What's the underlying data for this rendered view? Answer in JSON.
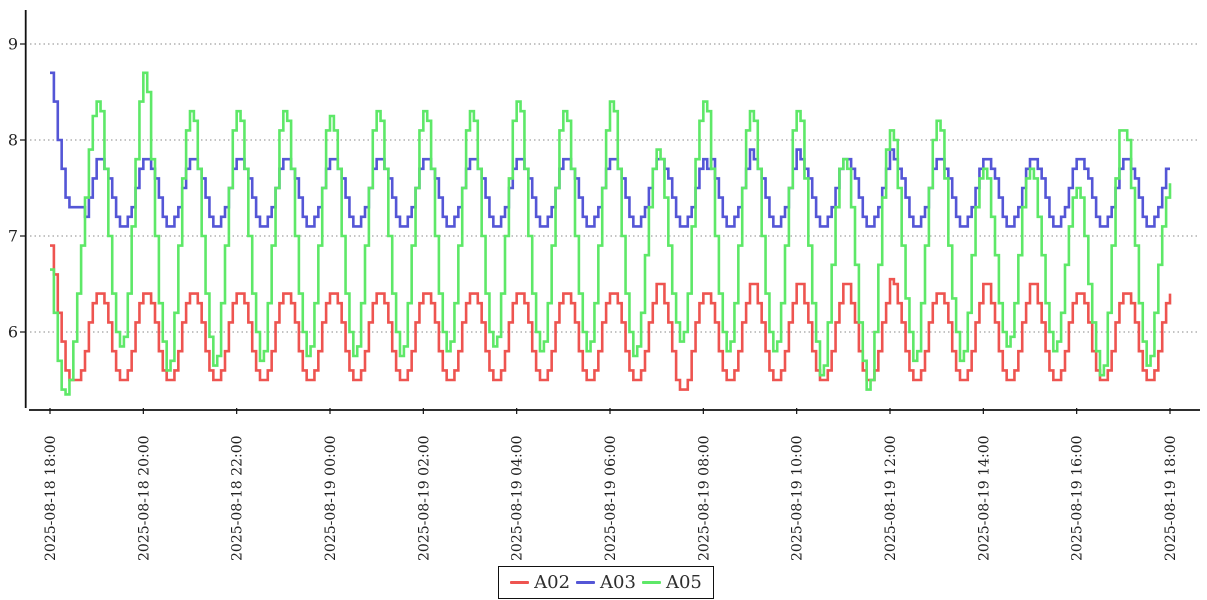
{
  "chart_data": {
    "type": "line",
    "line_style": "step-after",
    "title": "",
    "xlabel": "",
    "ylabel": "",
    "x_start_label": "2025-08-18 18:00",
    "x_end_label": "2025-08-19 18:00",
    "sample_interval_minutes": 5,
    "grid": "horizontal dotted",
    "legend_position": "bottom-center",
    "axis_color": "#111111",
    "grid_color": "#8a8a8a",
    "text_color": "#222222",
    "ylim": [
      5.2,
      9.35
    ],
    "y_ticks": [
      9,
      8,
      7,
      6
    ],
    "x_tick_labels": [
      "2025-08-18 18:00",
      "2025-08-18 20:00",
      "2025-08-18 22:00",
      "2025-08-19 00:00",
      "2025-08-19 02:00",
      "2025-08-19 04:00",
      "2025-08-19 06:00",
      "2025-08-19 08:00",
      "2025-08-19 10:00",
      "2025-08-19 12:00",
      "2025-08-19 14:00",
      "2025-08-19 16:00",
      "2025-08-19 18:00"
    ],
    "series": [
      {
        "name": "A02",
        "color": "#ee5450",
        "values": [
          6.9,
          6.6,
          6.2,
          5.9,
          5.6,
          5.5,
          5.5,
          5.5,
          5.6,
          5.8,
          6.1,
          6.3,
          6.4,
          6.4,
          6.3,
          6.1,
          5.8,
          5.6,
          5.5,
          5.5,
          5.6,
          5.8,
          6.1,
          6.3,
          6.4,
          6.4,
          6.3,
          6.1,
          5.8,
          5.6,
          5.5,
          5.5,
          5.6,
          5.8,
          6.1,
          6.3,
          6.4,
          6.4,
          6.3,
          6.1,
          5.8,
          5.6,
          5.5,
          5.5,
          5.6,
          5.8,
          6.1,
          6.3,
          6.4,
          6.4,
          6.3,
          6.1,
          5.8,
          5.6,
          5.5,
          5.5,
          5.6,
          5.8,
          6.1,
          6.3,
          6.4,
          6.4,
          6.3,
          6.1,
          5.8,
          5.6,
          5.5,
          5.5,
          5.6,
          5.8,
          6.1,
          6.3,
          6.4,
          6.4,
          6.3,
          6.1,
          5.8,
          5.6,
          5.5,
          5.5,
          5.6,
          5.8,
          6.1,
          6.3,
          6.4,
          6.4,
          6.3,
          6.1,
          5.8,
          5.6,
          5.5,
          5.5,
          5.6,
          5.8,
          6.1,
          6.3,
          6.4,
          6.4,
          6.3,
          6.1,
          5.8,
          5.6,
          5.5,
          5.5,
          5.6,
          5.8,
          6.1,
          6.3,
          6.4,
          6.4,
          6.3,
          6.1,
          5.8,
          5.6,
          5.5,
          5.5,
          5.6,
          5.8,
          6.1,
          6.3,
          6.4,
          6.4,
          6.3,
          6.1,
          5.8,
          5.6,
          5.5,
          5.5,
          5.6,
          5.8,
          6.1,
          6.3,
          6.4,
          6.4,
          6.3,
          6.1,
          5.8,
          5.6,
          5.5,
          5.5,
          5.6,
          5.8,
          6.1,
          6.3,
          6.4,
          6.4,
          6.3,
          6.1,
          5.8,
          5.6,
          5.5,
          5.5,
          5.6,
          5.8,
          6.1,
          6.3,
          6.5,
          6.5,
          6.3,
          6.1,
          5.8,
          5.5,
          5.4,
          5.4,
          5.5,
          5.8,
          6.1,
          6.3,
          6.4,
          6.4,
          6.3,
          6.1,
          5.8,
          5.6,
          5.5,
          5.5,
          5.6,
          5.8,
          6.1,
          6.3,
          6.5,
          6.5,
          6.3,
          6.1,
          5.8,
          5.6,
          5.5,
          5.5,
          5.6,
          5.8,
          6.1,
          6.3,
          6.5,
          6.5,
          6.3,
          6.1,
          5.8,
          5.6,
          5.5,
          5.5,
          5.6,
          5.8,
          6.1,
          6.3,
          6.5,
          6.5,
          6.3,
          6.1,
          5.8,
          5.6,
          5.5,
          5.5,
          5.6,
          5.8,
          6.1,
          6.3,
          6.55,
          6.5,
          6.3,
          6.1,
          5.8,
          5.6,
          5.5,
          5.5,
          5.6,
          5.8,
          6.1,
          6.3,
          6.4,
          6.4,
          6.3,
          6.1,
          5.8,
          5.6,
          5.5,
          5.5,
          5.6,
          5.8,
          6.1,
          6.3,
          6.5,
          6.5,
          6.3,
          6.1,
          5.8,
          5.6,
          5.5,
          5.5,
          5.6,
          5.8,
          6.1,
          6.3,
          6.5,
          6.5,
          6.3,
          6.1,
          5.8,
          5.6,
          5.5,
          5.5,
          5.6,
          5.8,
          6.1,
          6.3,
          6.4,
          6.4,
          6.3,
          6.1,
          5.8,
          5.6,
          5.5,
          5.5,
          5.6,
          5.8,
          6.1,
          6.3,
          6.4,
          6.4,
          6.3,
          6.1,
          5.8,
          5.6,
          5.5,
          5.5,
          5.6,
          5.8,
          6.1,
          6.3,
          6.4
        ]
      },
      {
        "name": "A03",
        "color": "#5456d6",
        "values": [
          8.7,
          8.4,
          8.0,
          7.7,
          7.4,
          7.3,
          7.3,
          7.3,
          7.3,
          7.2,
          7.4,
          7.6,
          7.8,
          7.8,
          7.7,
          7.6,
          7.4,
          7.2,
          7.1,
          7.1,
          7.2,
          7.3,
          7.5,
          7.7,
          7.8,
          7.8,
          7.7,
          7.6,
          7.4,
          7.2,
          7.1,
          7.1,
          7.2,
          7.3,
          7.5,
          7.7,
          7.8,
          7.8,
          7.7,
          7.6,
          7.4,
          7.2,
          7.1,
          7.1,
          7.2,
          7.3,
          7.5,
          7.7,
          7.8,
          7.8,
          7.7,
          7.6,
          7.4,
          7.2,
          7.1,
          7.1,
          7.2,
          7.3,
          7.5,
          7.7,
          7.8,
          7.8,
          7.7,
          7.6,
          7.4,
          7.2,
          7.1,
          7.1,
          7.2,
          7.3,
          7.5,
          7.7,
          7.8,
          7.8,
          7.7,
          7.6,
          7.4,
          7.2,
          7.1,
          7.1,
          7.2,
          7.3,
          7.5,
          7.7,
          7.8,
          7.8,
          7.7,
          7.6,
          7.4,
          7.2,
          7.1,
          7.1,
          7.2,
          7.3,
          7.5,
          7.7,
          7.8,
          7.8,
          7.7,
          7.6,
          7.4,
          7.2,
          7.1,
          7.1,
          7.2,
          7.3,
          7.5,
          7.7,
          7.8,
          7.8,
          7.7,
          7.6,
          7.4,
          7.2,
          7.1,
          7.1,
          7.2,
          7.3,
          7.5,
          7.7,
          7.8,
          7.8,
          7.7,
          7.6,
          7.4,
          7.2,
          7.1,
          7.1,
          7.2,
          7.3,
          7.5,
          7.7,
          7.8,
          7.8,
          7.7,
          7.6,
          7.4,
          7.2,
          7.1,
          7.1,
          7.2,
          7.3,
          7.5,
          7.7,
          7.8,
          7.8,
          7.7,
          7.6,
          7.4,
          7.2,
          7.1,
          7.1,
          7.2,
          7.3,
          7.5,
          7.7,
          7.8,
          7.8,
          7.7,
          7.6,
          7.4,
          7.2,
          7.1,
          7.1,
          7.2,
          7.3,
          7.5,
          7.7,
          7.8,
          7.7,
          7.8,
          7.6,
          7.4,
          7.2,
          7.1,
          7.1,
          7.2,
          7.3,
          7.5,
          7.7,
          7.9,
          7.8,
          7.7,
          7.6,
          7.4,
          7.2,
          7.1,
          7.1,
          7.2,
          7.3,
          7.5,
          7.7,
          7.9,
          7.8,
          7.7,
          7.6,
          7.4,
          7.2,
          7.1,
          7.1,
          7.2,
          7.3,
          7.5,
          7.7,
          7.8,
          7.8,
          7.7,
          7.6,
          7.4,
          7.2,
          7.1,
          7.1,
          7.2,
          7.3,
          7.5,
          7.7,
          7.9,
          7.8,
          7.7,
          7.6,
          7.4,
          7.2,
          7.1,
          7.1,
          7.2,
          7.3,
          7.5,
          7.7,
          7.8,
          7.8,
          7.7,
          7.6,
          7.4,
          7.2,
          7.1,
          7.1,
          7.2,
          7.3,
          7.5,
          7.7,
          7.8,
          7.8,
          7.7,
          7.6,
          7.4,
          7.2,
          7.1,
          7.1,
          7.2,
          7.3,
          7.5,
          7.7,
          7.8,
          7.8,
          7.7,
          7.6,
          7.4,
          7.2,
          7.1,
          7.1,
          7.2,
          7.3,
          7.5,
          7.7,
          7.8,
          7.8,
          7.7,
          7.6,
          7.4,
          7.2,
          7.1,
          7.1,
          7.2,
          7.3,
          7.5,
          7.7,
          7.8,
          7.8,
          7.7,
          7.6,
          7.4,
          7.2,
          7.1,
          7.1,
          7.2,
          7.3,
          7.5,
          7.7,
          7.7
        ]
      },
      {
        "name": "A05",
        "color": "#5ee868",
        "values": [
          6.65,
          6.2,
          5.7,
          5.4,
          5.35,
          5.5,
          5.9,
          6.4,
          6.9,
          7.4,
          7.9,
          8.25,
          8.4,
          8.3,
          7.7,
          7.0,
          6.4,
          6.0,
          5.85,
          5.95,
          6.4,
          7.1,
          7.8,
          8.4,
          8.7,
          8.5,
          7.8,
          7.0,
          6.3,
          5.9,
          5.6,
          5.7,
          6.2,
          6.9,
          7.6,
          8.1,
          8.3,
          8.2,
          7.7,
          7.0,
          6.4,
          5.95,
          5.65,
          5.75,
          6.3,
          6.9,
          7.5,
          8.1,
          8.3,
          8.2,
          7.7,
          7.0,
          6.4,
          6.0,
          5.7,
          5.8,
          6.3,
          6.9,
          7.5,
          8.1,
          8.3,
          8.2,
          7.7,
          7.0,
          6.4,
          6.0,
          5.75,
          5.85,
          6.3,
          6.9,
          7.5,
          8.1,
          8.25,
          8.1,
          7.7,
          7.0,
          6.4,
          6.0,
          5.75,
          5.85,
          6.3,
          6.9,
          7.5,
          8.1,
          8.3,
          8.2,
          7.7,
          7.0,
          6.4,
          6.0,
          5.75,
          5.85,
          6.3,
          6.9,
          7.5,
          8.1,
          8.3,
          8.2,
          7.7,
          7.0,
          6.4,
          6.0,
          5.8,
          5.9,
          6.3,
          6.9,
          7.5,
          8.1,
          8.3,
          8.2,
          7.7,
          7.0,
          6.4,
          6.0,
          5.85,
          5.95,
          6.4,
          7.0,
          7.6,
          8.2,
          8.4,
          8.3,
          7.7,
          7.0,
          6.4,
          6.0,
          5.8,
          5.9,
          6.3,
          6.9,
          7.5,
          8.1,
          8.3,
          8.2,
          7.7,
          7.0,
          6.4,
          6.0,
          5.8,
          5.9,
          6.3,
          6.9,
          7.5,
          8.1,
          8.4,
          8.3,
          7.7,
          7.0,
          6.4,
          6.0,
          5.75,
          5.85,
          6.2,
          6.8,
          7.3,
          7.7,
          7.9,
          7.8,
          7.4,
          6.9,
          6.4,
          6.1,
          5.9,
          6.0,
          6.4,
          7.1,
          7.8,
          8.2,
          8.4,
          8.3,
          7.7,
          7.0,
          6.4,
          6.0,
          5.8,
          5.9,
          6.3,
          6.9,
          7.5,
          8.1,
          8.3,
          8.2,
          7.7,
          7.0,
          6.4,
          6.0,
          5.8,
          5.9,
          6.3,
          6.9,
          7.5,
          8.1,
          8.3,
          8.2,
          7.6,
          6.9,
          6.3,
          5.9,
          5.55,
          5.65,
          6.1,
          6.7,
          7.3,
          7.7,
          7.8,
          7.7,
          7.3,
          6.7,
          6.1,
          5.7,
          5.4,
          5.5,
          6.0,
          6.7,
          7.4,
          7.9,
          8.1,
          8.0,
          7.5,
          6.9,
          6.35,
          6.0,
          5.7,
          5.8,
          6.3,
          6.9,
          7.5,
          8.0,
          8.2,
          8.1,
          7.6,
          6.9,
          6.35,
          6.0,
          5.7,
          5.8,
          6.2,
          6.8,
          7.3,
          7.6,
          7.7,
          7.6,
          7.2,
          6.8,
          6.3,
          6.0,
          5.85,
          5.95,
          6.3,
          6.8,
          7.3,
          7.6,
          7.7,
          7.6,
          7.2,
          6.8,
          6.3,
          6.0,
          5.8,
          5.9,
          6.2,
          6.7,
          7.1,
          7.4,
          7.5,
          7.4,
          7.0,
          6.5,
          6.1,
          5.8,
          5.55,
          5.65,
          6.2,
          6.9,
          7.6,
          8.1,
          8.1,
          8.0,
          7.5,
          6.9,
          6.3,
          5.9,
          5.65,
          5.75,
          6.2,
          6.7,
          7.1,
          7.4,
          7.55
        ]
      }
    ]
  },
  "legend": {
    "items": [
      {
        "label": "A02",
        "color": "#ee5450"
      },
      {
        "label": "A03",
        "color": "#5456d6"
      },
      {
        "label": "A05",
        "color": "#5ee868"
      }
    ]
  }
}
